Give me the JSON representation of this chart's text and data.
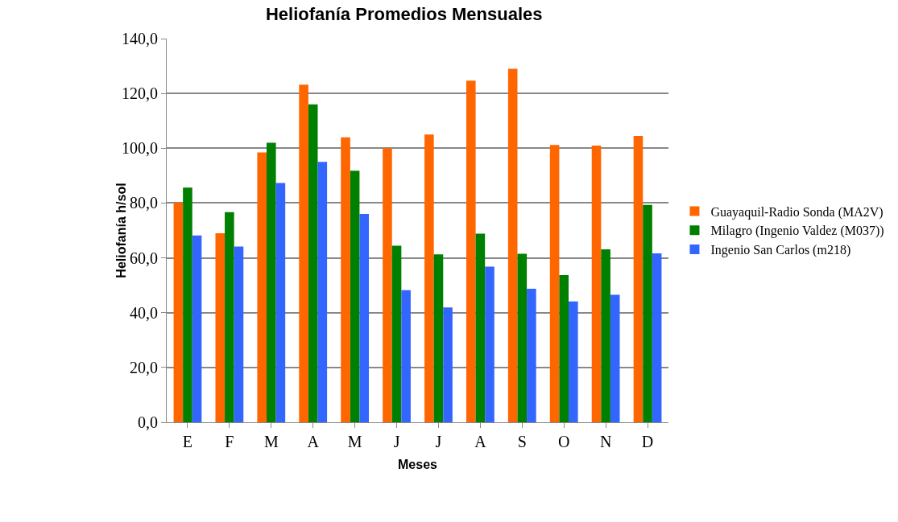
{
  "chart_data": {
    "type": "bar",
    "title": "Heliofanía Promedios Mensuales",
    "xlabel": "Meses",
    "ylabel": "Heliofanía h/sol",
    "categories": [
      "E",
      "F",
      "M",
      "A",
      "M",
      "J",
      "J",
      "A",
      "S",
      "O",
      "N",
      "D"
    ],
    "series": [
      {
        "name": "Guayaquil-Radio Sonda (MA2V)",
        "color": "#ff6600",
        "values": [
          80.2,
          69.0,
          98.5,
          123.2,
          104.0,
          100.0,
          105.0,
          124.7,
          129.0,
          101.2,
          101.0,
          104.5
        ]
      },
      {
        "name": "Milagro (Ingenio Valdez (M037))",
        "color": "#008000",
        "values": [
          85.6,
          76.7,
          102.0,
          116.0,
          91.8,
          64.4,
          61.3,
          68.8,
          61.5,
          53.7,
          63.1,
          79.3
        ]
      },
      {
        "name": "Ingenio San Carlos (m218)",
        "color": "#3366ff",
        "values": [
          68.2,
          64.1,
          87.3,
          95.0,
          76.0,
          48.2,
          41.9,
          56.8,
          48.7,
          44.1,
          46.5,
          61.6
        ]
      }
    ],
    "ylim": [
      0,
      140
    ],
    "yticks": [
      {
        "value": 0,
        "label": "0,0"
      },
      {
        "value": 20,
        "label": "20,0"
      },
      {
        "value": 40,
        "label": "40,0"
      },
      {
        "value": 60,
        "label": "60,0"
      },
      {
        "value": 80,
        "label": "80,0"
      },
      {
        "value": 100,
        "label": "100,0"
      },
      {
        "value": 120,
        "label": "120,0"
      },
      {
        "value": 140,
        "label": "140,0"
      }
    ],
    "grid": "y",
    "legend": "right"
  }
}
